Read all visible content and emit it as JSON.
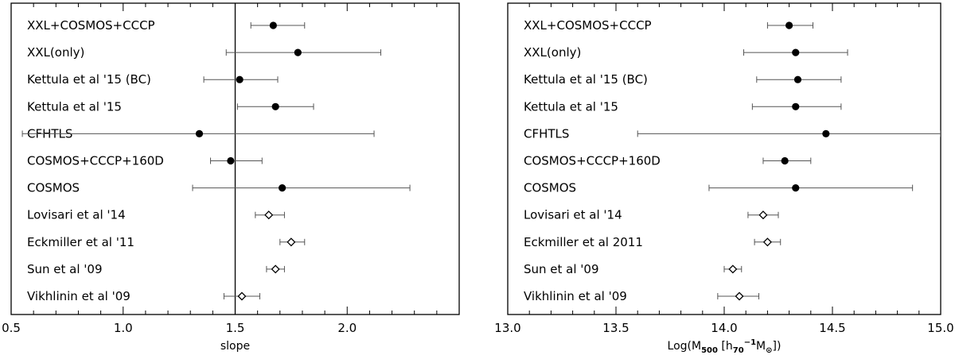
{
  "chart_data": [
    {
      "type": "scatter",
      "xlabel": "slope",
      "xlim": [
        0.5,
        2.5
      ],
      "xticks": [
        "0.5",
        "1.0",
        "1.5",
        "2.0"
      ],
      "xtick_values": [
        0.5,
        1.0,
        1.5,
        2.0
      ],
      "reference_line_x": 1.5,
      "grid": false,
      "points": [
        {
          "label": "XXL+COSMOS+CCCP",
          "value": 1.67,
          "err_low": 1.57,
          "err_high": 1.81,
          "marker": "filled"
        },
        {
          "label": "XXL(only)",
          "value": 1.78,
          "err_low": 1.46,
          "err_high": 2.15,
          "marker": "filled"
        },
        {
          "label": "Kettula et al '15 (BC)",
          "value": 1.52,
          "err_low": 1.36,
          "err_high": 1.69,
          "marker": "filled"
        },
        {
          "label": "Kettula et al '15",
          "value": 1.68,
          "err_low": 1.51,
          "err_high": 1.85,
          "marker": "filled"
        },
        {
          "label": "CFHTLS",
          "value": 1.34,
          "err_low": 0.55,
          "err_high": 2.12,
          "marker": "filled"
        },
        {
          "label": "COSMOS+CCCP+160D",
          "value": 1.48,
          "err_low": 1.39,
          "err_high": 1.62,
          "marker": "filled"
        },
        {
          "label": "COSMOS",
          "value": 1.71,
          "err_low": 1.31,
          "err_high": 2.28,
          "marker": "filled"
        },
        {
          "label": "Lovisari et al '14",
          "value": 1.65,
          "err_low": 1.59,
          "err_high": 1.72,
          "marker": "open"
        },
        {
          "label": "Eckmiller et al '11",
          "value": 1.75,
          "err_low": 1.7,
          "err_high": 1.81,
          "marker": "open"
        },
        {
          "label": "Sun et al '09",
          "value": 1.68,
          "err_low": 1.64,
          "err_high": 1.72,
          "marker": "open"
        },
        {
          "label": "Vikhlinin et al '09",
          "value": 1.53,
          "err_low": 1.45,
          "err_high": 1.61,
          "marker": "open"
        }
      ]
    },
    {
      "type": "scatter",
      "xlabel": "Log(M",
      "xlabel_sub": "500",
      "xlabel_mid": " [h",
      "xlabel_sub2": "70",
      "xlabel_sup": "−1",
      "xlabel_tail": "M",
      "xlabel_sun": "⊙",
      "xlabel_end": "])",
      "xlim": [
        13.0,
        15.0
      ],
      "xticks": [
        "13.0",
        "13.5",
        "14.0",
        "14.5",
        "15.0"
      ],
      "xtick_values": [
        13.0,
        13.5,
        14.0,
        14.5,
        15.0
      ],
      "grid": false,
      "points": [
        {
          "label": "XXL+COSMOS+CCCP",
          "value": 14.3,
          "err_low": 14.2,
          "err_high": 14.41,
          "marker": "filled"
        },
        {
          "label": "XXL(only)",
          "value": 14.33,
          "err_low": 14.09,
          "err_high": 14.57,
          "marker": "filled"
        },
        {
          "label": "Kettula et al '15 (BC)",
          "value": 14.34,
          "err_low": 14.15,
          "err_high": 14.54,
          "marker": "filled"
        },
        {
          "label": "Kettula et al '15",
          "value": 14.33,
          "err_low": 14.13,
          "err_high": 14.54,
          "marker": "filled"
        },
        {
          "label": "CFHTLS",
          "value": 14.47,
          "err_low": 13.6,
          "err_high": 15.0,
          "marker": "filled"
        },
        {
          "label": "COSMOS+CCCP+160D",
          "value": 14.28,
          "err_low": 14.18,
          "err_high": 14.4,
          "marker": "filled"
        },
        {
          "label": "COSMOS",
          "value": 14.33,
          "err_low": 13.93,
          "err_high": 14.87,
          "marker": "filled"
        },
        {
          "label": "Lovisari et al '14",
          "value": 14.18,
          "err_low": 14.11,
          "err_high": 14.25,
          "marker": "open"
        },
        {
          "label": "Eckmiller et al 2011",
          "value": 14.2,
          "err_low": 14.14,
          "err_high": 14.26,
          "marker": "open"
        },
        {
          "label": "Sun et al '09",
          "value": 14.04,
          "err_low": 14.0,
          "err_high": 14.08,
          "marker": "open"
        },
        {
          "label": "Vikhlinin et al '09",
          "value": 14.07,
          "err_low": 13.97,
          "err_high": 14.16,
          "marker": "open"
        }
      ]
    }
  ]
}
